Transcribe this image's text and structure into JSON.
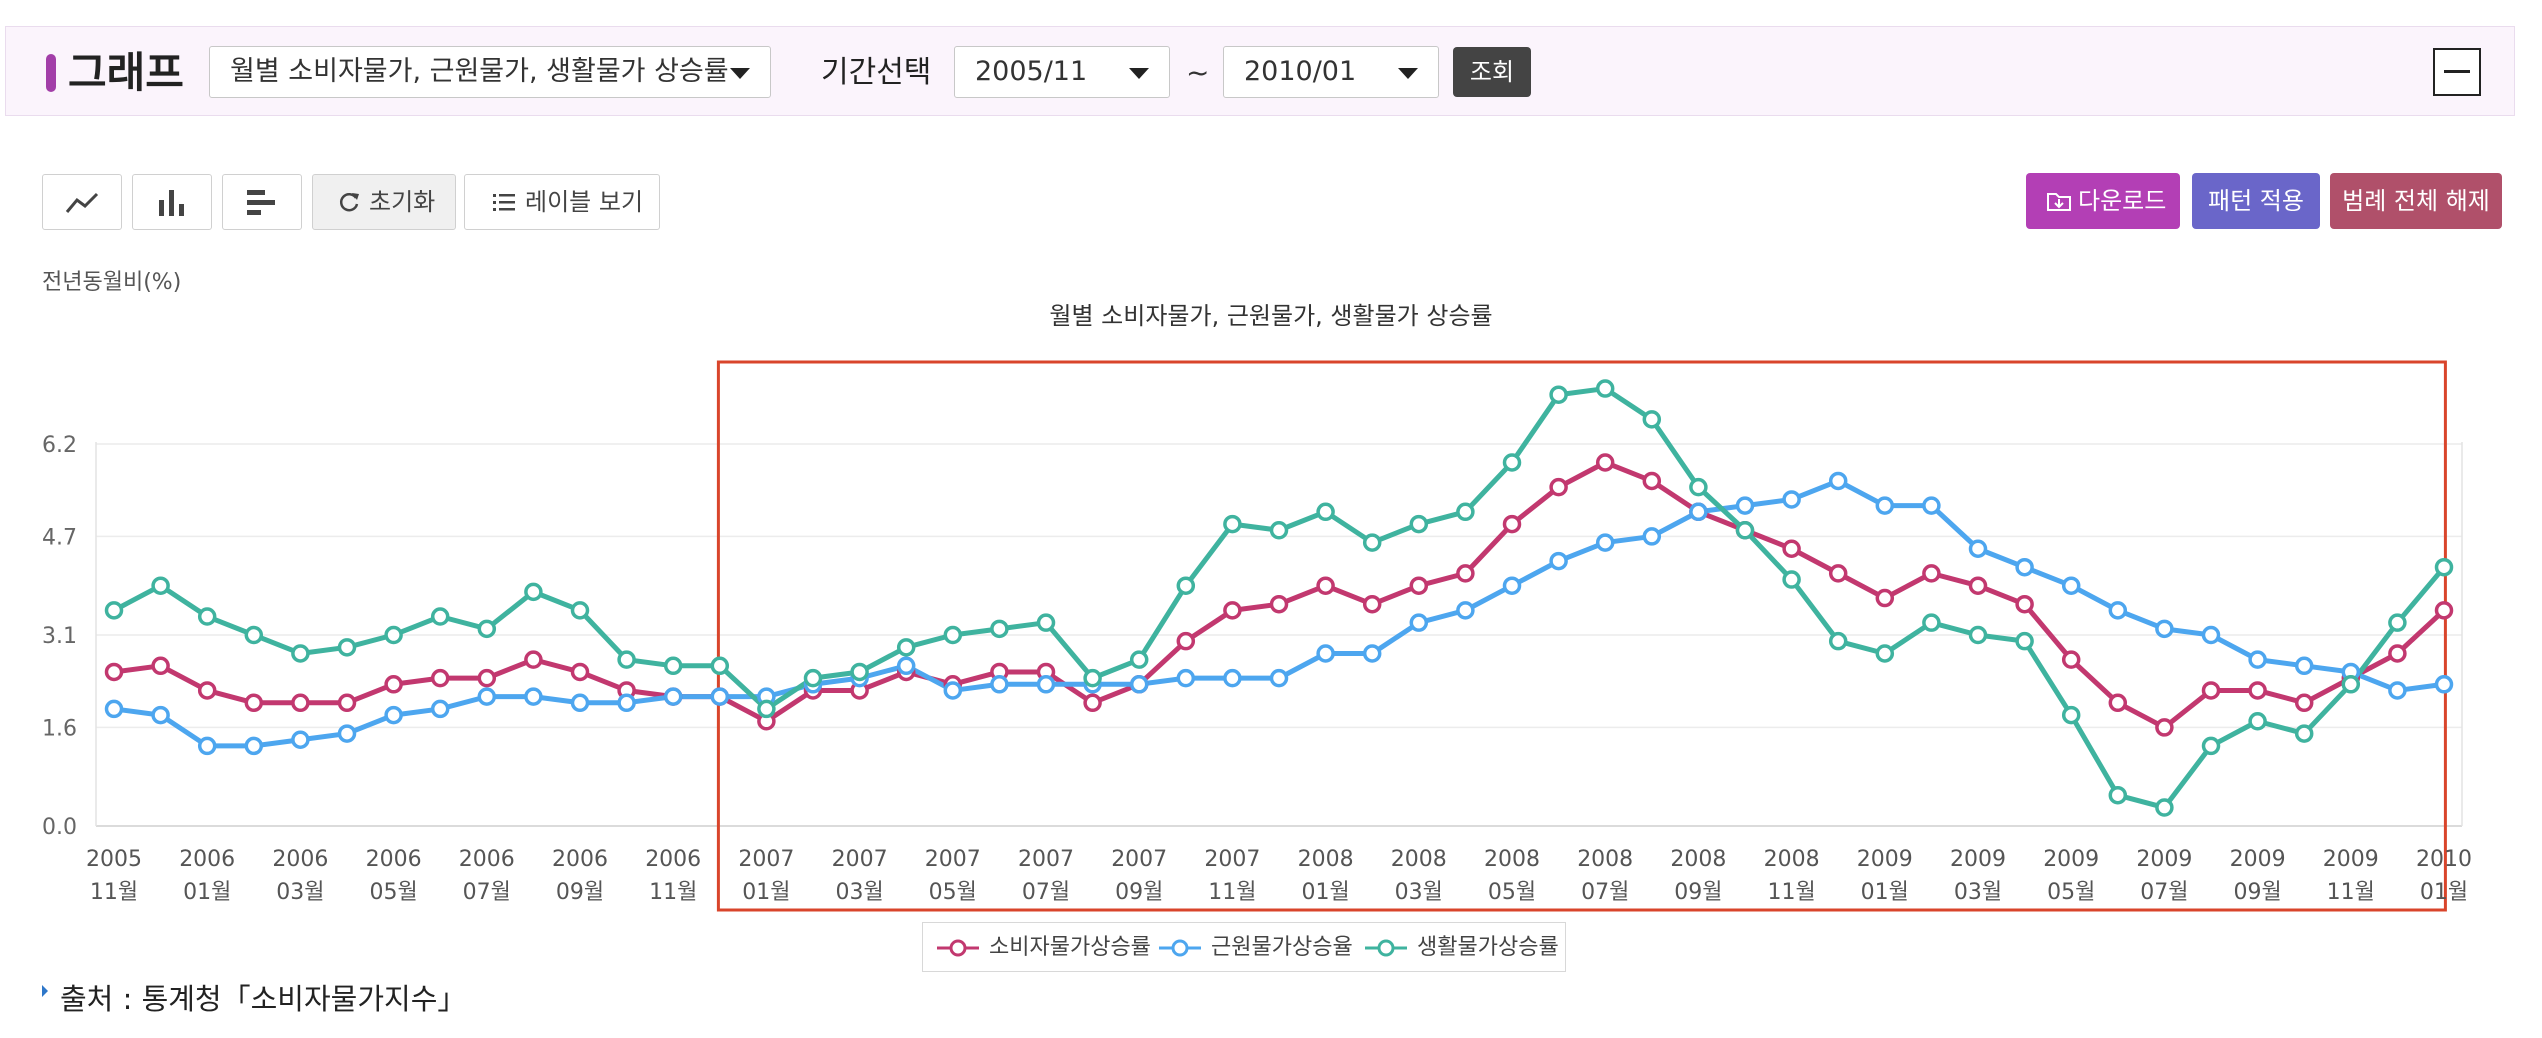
{
  "filter": {
    "title": "그래프",
    "indicator_select": "월별 소비자물가, 근원물가, 생활물가 상승률",
    "period_label": "기간선택",
    "start_period": "2005/11",
    "range_separator": "~",
    "end_period": "2010/01",
    "query_button": "조회"
  },
  "toolbar": {
    "line_icon": "line-chart-icon",
    "bar_icon": "bar-chart-icon",
    "hbar_icon": "horizontal-bar-chart-icon",
    "reset_label": "초기화",
    "label_view": "레이블 보기",
    "download": "다운로드",
    "pattern": "패턴 적용",
    "legend_clear": "범례 전체 해제"
  },
  "colors": {
    "accent": "#a23ea8",
    "cpi": "#c2386f",
    "core": "#4da6ef",
    "living": "#3fb39f",
    "highlight_box": "#d9452b",
    "download_btn": "#b33fb5",
    "pattern_btn": "#6a66c9",
    "legend_btn": "#b0506a"
  },
  "chart_data": {
    "type": "line",
    "title": "월별 소비자물가, 근원물가, 생활물가 상승률",
    "ylabel": "전년동월비(%)",
    "xlabel": "",
    "ylim": [
      0.0,
      6.2
    ],
    "y_ticks": [
      "0.0",
      "1.6",
      "3.1",
      "4.7",
      "6.2"
    ],
    "x_tick_labels": [
      [
        "2005",
        "11월"
      ],
      [
        "2006",
        "01월"
      ],
      [
        "2006",
        "03월"
      ],
      [
        "2006",
        "05월"
      ],
      [
        "2006",
        "07월"
      ],
      [
        "2006",
        "09월"
      ],
      [
        "2006",
        "11월"
      ],
      [
        "2007",
        "01월"
      ],
      [
        "2007",
        "03월"
      ],
      [
        "2007",
        "05월"
      ],
      [
        "2007",
        "07월"
      ],
      [
        "2007",
        "09월"
      ],
      [
        "2007",
        "11월"
      ],
      [
        "2008",
        "01월"
      ],
      [
        "2008",
        "03월"
      ],
      [
        "2008",
        "05월"
      ],
      [
        "2008",
        "07월"
      ],
      [
        "2008",
        "09월"
      ],
      [
        "2008",
        "11월"
      ],
      [
        "2009",
        "01월"
      ],
      [
        "2009",
        "03월"
      ],
      [
        "2009",
        "05월"
      ],
      [
        "2009",
        "07월"
      ],
      [
        "2009",
        "09월"
      ],
      [
        "2009",
        "11월"
      ],
      [
        "2010",
        "01월"
      ]
    ],
    "x": [
      "2005-11",
      "2005-12",
      "2006-01",
      "2006-02",
      "2006-03",
      "2006-04",
      "2006-05",
      "2006-06",
      "2006-07",
      "2006-08",
      "2006-09",
      "2006-10",
      "2006-11",
      "2006-12",
      "2007-01",
      "2007-02",
      "2007-03",
      "2007-04",
      "2007-05",
      "2007-06",
      "2007-07",
      "2007-08",
      "2007-09",
      "2007-10",
      "2007-11",
      "2007-12",
      "2008-01",
      "2008-02",
      "2008-03",
      "2008-04",
      "2008-05",
      "2008-06",
      "2008-07",
      "2008-08",
      "2008-09",
      "2008-10",
      "2008-11",
      "2008-12",
      "2009-01",
      "2009-02",
      "2009-03",
      "2009-04",
      "2009-05",
      "2009-06",
      "2009-07",
      "2009-08",
      "2009-09",
      "2009-10",
      "2009-11",
      "2009-12",
      "2010-01"
    ],
    "series": [
      {
        "name": "소비자물가상승률",
        "color": "#c2386f",
        "values": [
          2.5,
          2.6,
          2.2,
          2.0,
          2.0,
          2.0,
          2.3,
          2.4,
          2.4,
          2.7,
          2.5,
          2.2,
          2.1,
          2.1,
          1.7,
          2.2,
          2.2,
          2.5,
          2.3,
          2.5,
          2.5,
          2.0,
          2.3,
          3.0,
          3.5,
          3.6,
          3.9,
          3.6,
          3.9,
          4.1,
          4.9,
          5.5,
          5.9,
          5.6,
          5.1,
          4.8,
          4.5,
          4.1,
          3.7,
          4.1,
          3.9,
          3.6,
          2.7,
          2.0,
          1.6,
          2.2,
          2.2,
          2.0,
          2.4,
          2.8,
          3.5
        ]
      },
      {
        "name": "근원물가상승율",
        "color": "#4da6ef",
        "values": [
          1.9,
          1.8,
          1.3,
          1.3,
          1.4,
          1.5,
          1.8,
          1.9,
          2.1,
          2.1,
          2.0,
          2.0,
          2.1,
          2.1,
          2.1,
          2.3,
          2.4,
          2.6,
          2.2,
          2.3,
          2.3,
          2.3,
          2.3,
          2.4,
          2.4,
          2.4,
          2.8,
          2.8,
          3.3,
          3.5,
          3.9,
          4.3,
          4.6,
          4.7,
          5.1,
          5.2,
          5.3,
          5.6,
          5.2,
          5.2,
          4.5,
          4.2,
          3.9,
          3.5,
          3.2,
          3.1,
          2.7,
          2.6,
          2.5,
          2.2,
          2.3
        ]
      },
      {
        "name": "생활물가상승률",
        "color": "#3fb39f",
        "values": [
          3.5,
          3.9,
          3.4,
          3.1,
          2.8,
          2.9,
          3.1,
          3.4,
          3.2,
          3.8,
          3.5,
          2.7,
          2.6,
          2.6,
          1.9,
          2.4,
          2.5,
          2.9,
          3.1,
          3.2,
          3.3,
          2.4,
          2.7,
          3.9,
          4.9,
          4.8,
          5.1,
          4.6,
          4.9,
          5.1,
          5.9,
          7.0,
          7.1,
          6.6,
          5.5,
          4.8,
          4.0,
          3.0,
          2.8,
          3.3,
          3.1,
          3.0,
          1.8,
          0.5,
          0.3,
          1.3,
          1.7,
          1.5,
          2.3,
          3.3,
          4.2
        ]
      }
    ],
    "grid": true,
    "legend_position": "bottom",
    "highlight_range": [
      "2007-01",
      "2009-12"
    ]
  },
  "source": "출처 : 통계청「소비자물가지수」"
}
